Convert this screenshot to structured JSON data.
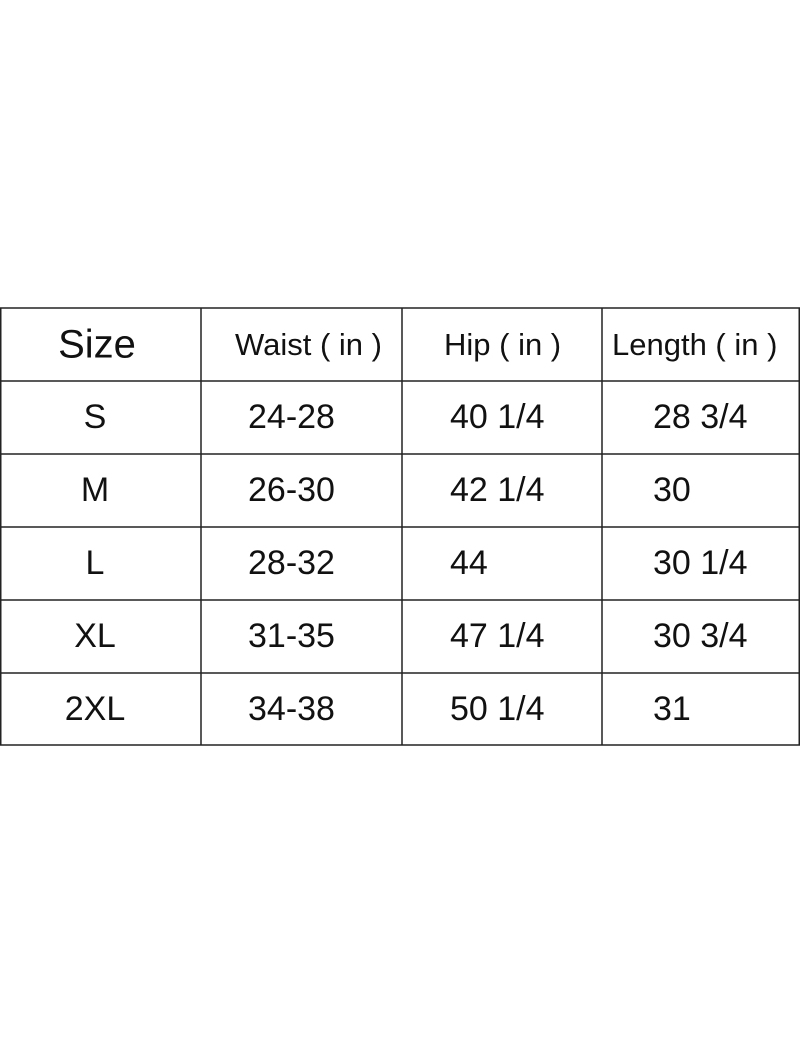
{
  "table": {
    "header": [
      "Size",
      "Waist ( in )",
      "Hip ( in )",
      "Length ( in )"
    ],
    "rows": [
      [
        "S",
        "24-28",
        "40 1/4",
        "28 3/4"
      ],
      [
        "M",
        "26-30",
        "42 1/4",
        "30"
      ],
      [
        "L",
        "28-32",
        "44",
        "30 1/4"
      ],
      [
        "XL",
        "31-35",
        "47 1/4",
        "30 3/4"
      ],
      [
        "2XL",
        "34-38",
        "50 1/4",
        "31"
      ]
    ]
  }
}
